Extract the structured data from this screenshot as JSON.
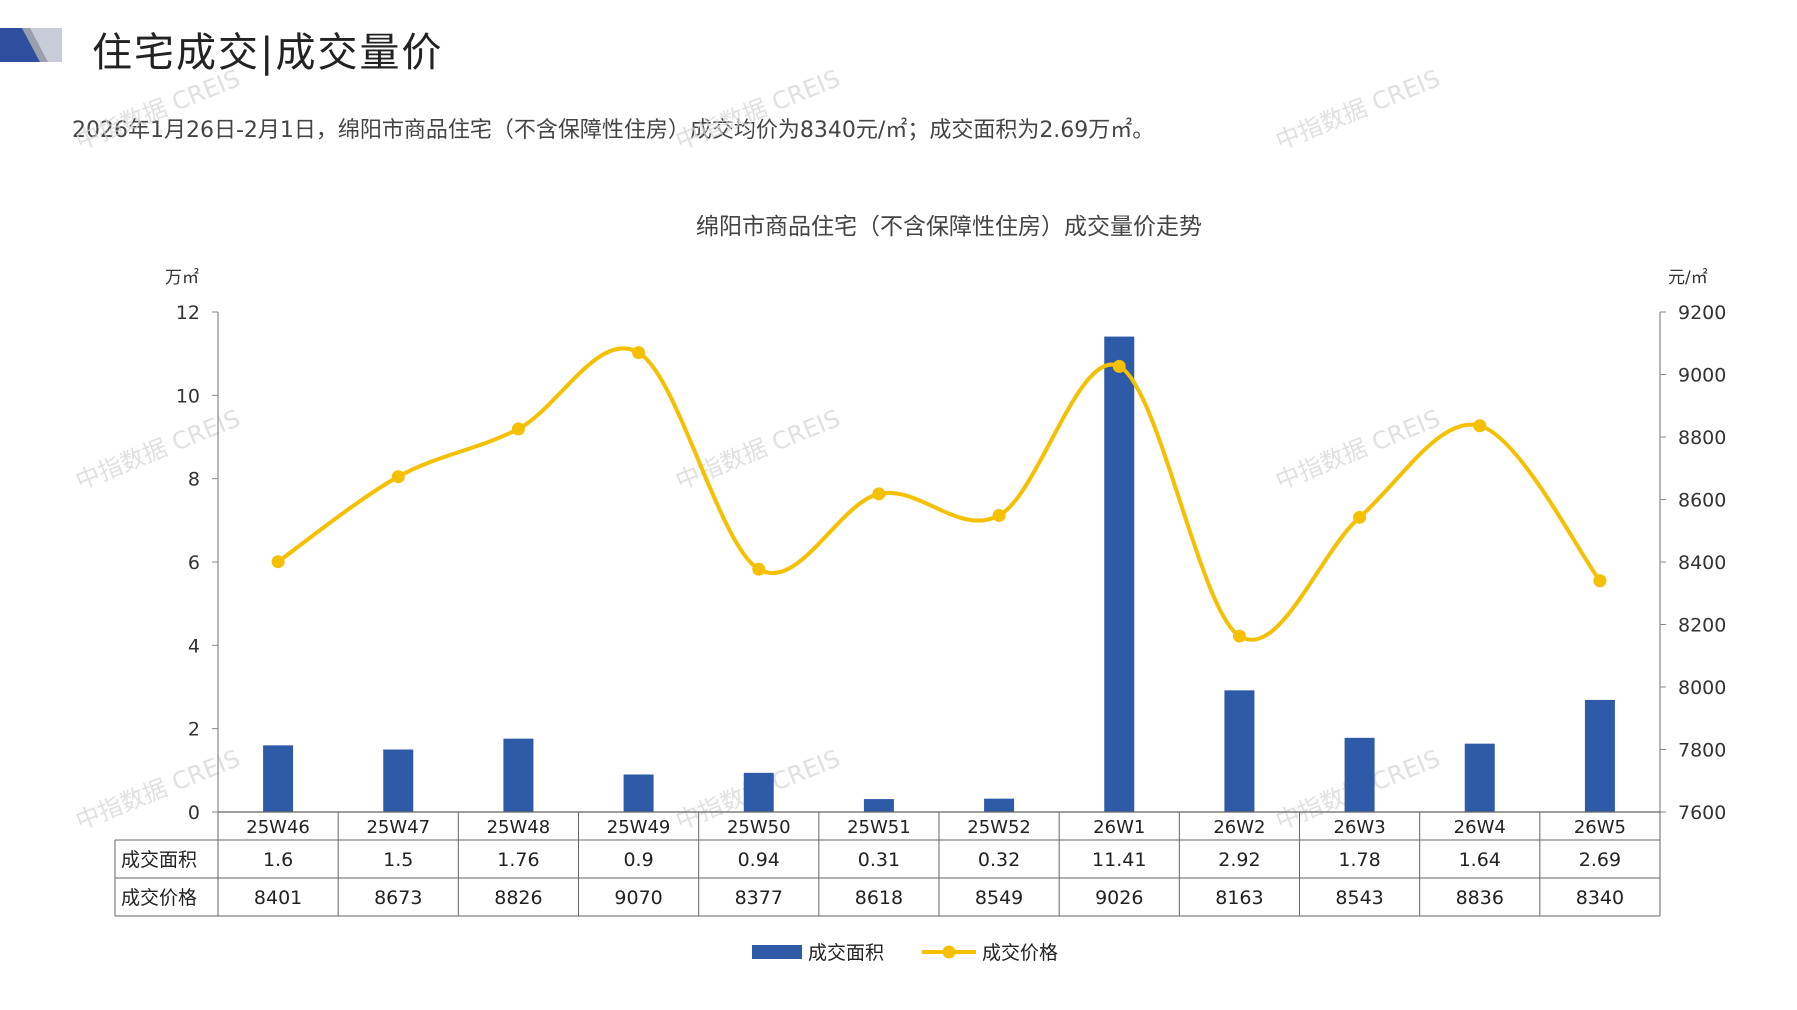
{
  "header": {
    "title": "住宅成交|成交量价",
    "summary": "2026年1月26日-2月1日，绵阳市商品住宅（不含保障性住房）成交均价为8340元/㎡；成交面积为2.69万㎡。"
  },
  "watermark": "中指数据 CREIS",
  "colors": {
    "bar": "#2E5BA8",
    "line": "#F5C000",
    "grid": "#999999",
    "brand_dark": "#2F4E9E",
    "brand_light": "#C8CCD8"
  },
  "chart_data": {
    "type": "bar",
    "title": "绵阳市商品住宅（不含保障性住房）成交量价走势",
    "categories": [
      "25W46",
      "25W47",
      "25W48",
      "25W49",
      "25W50",
      "25W51",
      "25W52",
      "26W1",
      "26W2",
      "26W3",
      "26W4",
      "26W5"
    ],
    "y_left": {
      "unit": "万㎡",
      "ylim": [
        0,
        12
      ],
      "ticks": [
        "0",
        "2",
        "4",
        "6",
        "8",
        "10",
        "12"
      ]
    },
    "y_right": {
      "unit": "元/㎡",
      "ylim": [
        7600,
        9200
      ],
      "ticks": [
        "7600",
        "7800",
        "8000",
        "8200",
        "8400",
        "8600",
        "8800",
        "9000",
        "9200"
      ]
    },
    "series": [
      {
        "name": "成交面积",
        "type": "bar",
        "axis": "left",
        "values": [
          1.6,
          1.5,
          1.76,
          0.9,
          0.94,
          0.31,
          0.32,
          11.41,
          2.92,
          1.78,
          1.64,
          2.69
        ],
        "labels": [
          "1.6",
          "1.5",
          "1.76",
          "0.9",
          "0.94",
          "0.31",
          "0.32",
          "11.41",
          "2.92",
          "1.78",
          "1.64",
          "2.69"
        ]
      },
      {
        "name": "成交价格",
        "type": "line",
        "axis": "right",
        "values": [
          8401,
          8673,
          8826,
          9070,
          8377,
          8618,
          8549,
          9026,
          8163,
          8543,
          8836,
          8340
        ],
        "labels": [
          "8401",
          "8673",
          "8826",
          "9070",
          "8377",
          "8618",
          "8549",
          "9026",
          "8163",
          "8543",
          "8836",
          "8340"
        ]
      }
    ],
    "legend": "bottom-center",
    "data_table": true
  }
}
